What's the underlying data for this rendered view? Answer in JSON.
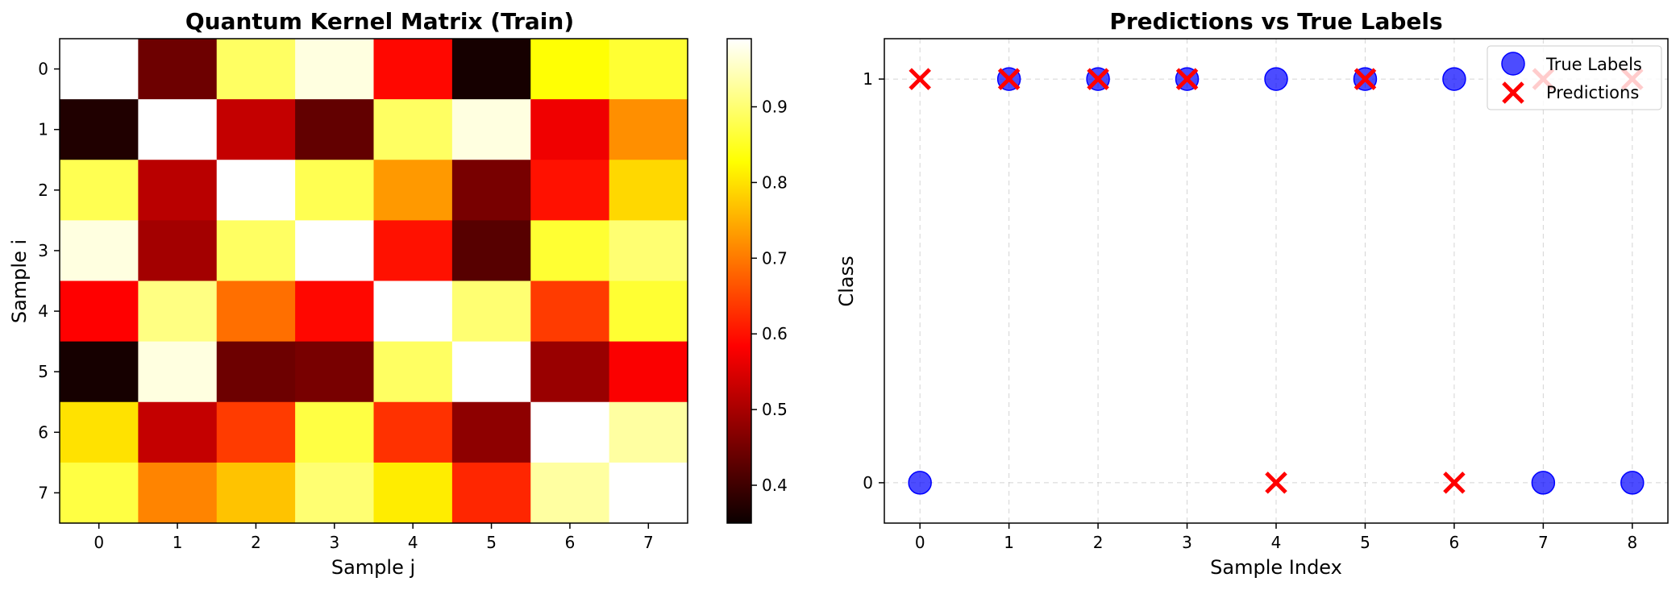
{
  "chart_data": [
    {
      "type": "heatmap",
      "title": "Quantum Kernel Matrix (Train)",
      "xlabel": "Sample j",
      "ylabel": "Sample i",
      "x_ticks": [
        "0",
        "1",
        "2",
        "3",
        "4",
        "5",
        "6",
        "7"
      ],
      "y_ticks": [
        "0",
        "1",
        "2",
        "3",
        "4",
        "5",
        "6",
        "7"
      ],
      "colormap": "hot",
      "vmin": 0.35,
      "vmax": 0.99,
      "colorbar_ticks": [
        0.4,
        0.5,
        0.6,
        0.7,
        0.8,
        0.9
      ],
      "colorbar_tick_labels": [
        "0.4",
        "0.5",
        "0.6",
        "0.7",
        "0.8",
        "0.9"
      ],
      "matrix": [
        [
          1.0,
          0.44,
          0.89,
          0.97,
          0.59,
          0.36,
          0.83,
          0.86
        ],
        [
          0.37,
          1.0,
          0.52,
          0.43,
          0.89,
          0.97,
          0.56,
          0.72
        ],
        [
          0.88,
          0.51,
          1.0,
          0.88,
          0.73,
          0.45,
          0.6,
          0.79
        ],
        [
          0.97,
          0.49,
          0.89,
          1.0,
          0.6,
          0.42,
          0.86,
          0.9
        ],
        [
          0.58,
          0.91,
          0.69,
          0.59,
          1.0,
          0.9,
          0.64,
          0.86
        ],
        [
          0.36,
          0.97,
          0.44,
          0.45,
          0.89,
          1.0,
          0.48,
          0.57
        ],
        [
          0.8,
          0.52,
          0.64,
          0.87,
          0.63,
          0.47,
          1.0,
          0.93
        ],
        [
          0.87,
          0.71,
          0.77,
          0.9,
          0.81,
          0.62,
          0.93,
          1.0
        ]
      ]
    },
    {
      "type": "scatter",
      "title": "Predictions vs True Labels",
      "xlabel": "Sample Index",
      "ylabel": "Class",
      "x_ticks": [
        0,
        1,
        2,
        3,
        4,
        5,
        6,
        7,
        8
      ],
      "y_ticks": [
        0,
        1
      ],
      "xlim": [
        -0.4,
        8.4
      ],
      "ylim": [
        -0.1,
        1.1
      ],
      "grid": true,
      "legend_position": "top-right",
      "series": [
        {
          "name": "True Labels",
          "marker": "circle",
          "color": "#0000ff",
          "x": [
            0,
            1,
            2,
            3,
            4,
            5,
            6,
            7,
            8
          ],
          "y": [
            0,
            1,
            1,
            1,
            1,
            1,
            1,
            0,
            0
          ]
        },
        {
          "name": "Predictions",
          "marker": "x",
          "color": "#ff0000",
          "x": [
            0,
            1,
            2,
            3,
            4,
            5,
            6,
            7,
            8
          ],
          "y": [
            1,
            1,
            1,
            1,
            0,
            1,
            0,
            1,
            1
          ]
        }
      ]
    }
  ]
}
